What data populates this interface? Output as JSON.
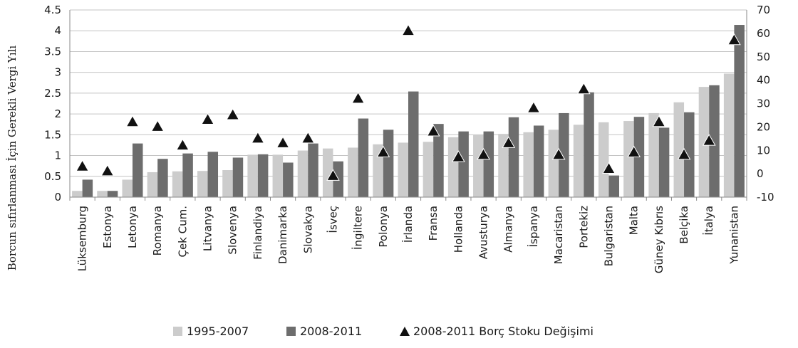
{
  "chart_data": {
    "type": "bar",
    "title": "",
    "ylabel": "Borcun sıfırlanması İçin Gerekli Vergi Yılı",
    "ylim": [
      0,
      4.5
    ],
    "yticks": [
      "0",
      "0.5",
      "1",
      "1.5",
      "2",
      "2.5",
      "3",
      "3.5",
      "4",
      "4.5"
    ],
    "y2lim": [
      -10,
      70
    ],
    "y2ticks": [
      "-10",
      "0",
      "10",
      "20",
      "30",
      "40",
      "50",
      "60",
      "70"
    ],
    "grid": true,
    "legend_position": "bottom",
    "categories": [
      "Lüksemburg",
      "Estonya",
      "Letonya",
      "Romanya",
      "Çek Cum.",
      "Litvanya",
      "Slovenya",
      "Finlandiya",
      "Danimarka",
      "Slovakya",
      "İsveç",
      "İngiltere",
      "Polonya",
      "İrlanda",
      "Fransa",
      "Hollanda",
      "Avusturya",
      "Almanya",
      "İspanya",
      "Macaristan",
      "Portekiz",
      "Bulgaristan",
      "Malta",
      "Güney Kıbrıs",
      "Belçika",
      "İtalya",
      "Yunanistan"
    ],
    "series": [
      {
        "name": "1995-2007",
        "type": "bar",
        "axis": "left",
        "color": "#cccccc",
        "values": [
          0.15,
          0.15,
          0.42,
          0.6,
          0.62,
          0.63,
          0.65,
          1.02,
          1.02,
          1.12,
          1.17,
          1.19,
          1.27,
          1.31,
          1.33,
          1.44,
          1.5,
          1.52,
          1.56,
          1.62,
          1.74,
          1.8,
          1.83,
          2.02,
          2.28,
          2.65,
          2.97
        ]
      },
      {
        "name": "2008-2011",
        "type": "bar",
        "axis": "left",
        "color": "#6d6d6d",
        "values": [
          0.42,
          0.15,
          1.29,
          0.92,
          1.05,
          1.09,
          0.95,
          1.03,
          0.83,
          1.29,
          0.86,
          1.89,
          1.62,
          2.54,
          1.76,
          1.58,
          1.58,
          1.92,
          1.72,
          2.02,
          2.52,
          0.52,
          1.93,
          1.67,
          2.04,
          2.69,
          4.14
        ]
      },
      {
        "name": "2008-2011 Borç Stoku Değişimi",
        "type": "scatter",
        "axis": "right",
        "marker": "triangle",
        "color": "#111111",
        "values": [
          3,
          1,
          22,
          20,
          12,
          23,
          25,
          15,
          13,
          15,
          -1,
          32,
          9,
          61,
          18,
          7,
          8,
          13,
          28,
          8,
          36,
          2,
          9,
          22,
          8,
          14,
          57
        ]
      }
    ]
  }
}
